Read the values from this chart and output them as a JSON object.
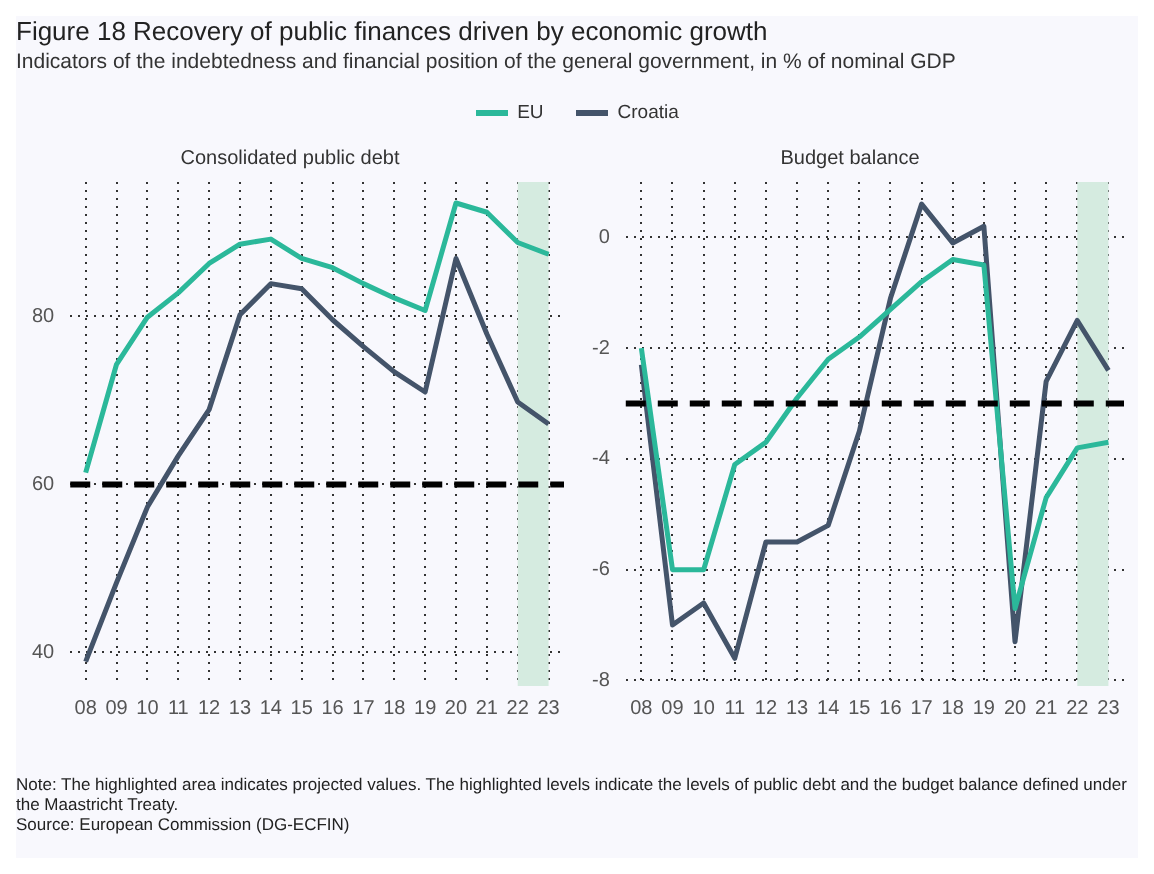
{
  "chart_data": [
    {
      "type": "other",
      "title": "Figure 18 Recovery of public finances driven by economic growth",
      "subtitle": "Indicators of the indebtedness and financial position of the general government, in % of nominal GDP",
      "annotations": [
        "Note: The highlighted area indicates projected values. The highlighted levels indicate the levels of public debt and the budget balance defined under the Maastricht Treaty.",
        "Source: European Commission (DG-ECFIN)"
      ]
    },
    {
      "type": "line",
      "title": "Consolidated public debt",
      "categories": [
        "08",
        "09",
        "10",
        "11",
        "12",
        "13",
        "14",
        "15",
        "16",
        "17",
        "18",
        "19",
        "20",
        "21",
        "22",
        "23"
      ],
      "legend": "top",
      "grid": true,
      "ylim": [
        36,
        96
      ],
      "yticks": [
        40,
        60,
        80
      ],
      "series": [
        {
          "name": "EU",
          "color": "#2bb89a",
          "values": [
            61.4,
            74.3,
            79.9,
            82.8,
            86.3,
            88.6,
            89.2,
            86.9,
            85.8,
            83.9,
            82.2,
            80.7,
            93.5,
            92.4,
            88.8,
            87.4
          ]
        },
        {
          "name": "Croatia",
          "color": "#44546a",
          "values": [
            38.9,
            48.3,
            57.3,
            63.4,
            68.9,
            80.2,
            83.9,
            83.3,
            79.6,
            76.4,
            73.4,
            71.0,
            86.9,
            77.9,
            69.8,
            67.2
          ]
        }
      ],
      "ref_lines": [
        {
          "axis": "y",
          "value": 60,
          "color": "#000000",
          "line_style": "dashed"
        }
      ],
      "bands": [
        {
          "axis": "x",
          "from": "22",
          "to": "23",
          "color": "#d5ebe0"
        }
      ]
    },
    {
      "type": "line",
      "title": "Budget balance",
      "categories": [
        "08",
        "09",
        "10",
        "11",
        "12",
        "13",
        "14",
        "15",
        "16",
        "17",
        "18",
        "19",
        "20",
        "21",
        "22",
        "23"
      ],
      "grid": true,
      "ylim": [
        -8.1,
        1
      ],
      "yticks": [
        -8,
        -6,
        -4,
        -2,
        0
      ],
      "series": [
        {
          "color": "#2bb89a",
          "values": [
            -2.0,
            -6.0,
            -6.0,
            -4.1,
            -3.7,
            -2.9,
            -2.2,
            -1.8,
            -1.3,
            -0.8,
            -0.4,
            -0.5,
            -6.7,
            -4.7,
            -3.8,
            -3.7
          ]
        },
        {
          "color": "#44546a",
          "values": [
            -2.3,
            -7.0,
            -6.6,
            -7.6,
            -5.5,
            -5.5,
            -5.2,
            -3.5,
            -1.1,
            0.6,
            -0.1,
            0.2,
            -7.3,
            -2.6,
            -1.5,
            -2.4
          ]
        }
      ],
      "ref_lines": [
        {
          "axis": "y",
          "value": -3,
          "color": "#000000",
          "line_style": "dashed"
        }
      ],
      "bands": [
        {
          "axis": "x",
          "from": "22",
          "to": "23",
          "color": "#d5ebe0"
        }
      ]
    }
  ]
}
